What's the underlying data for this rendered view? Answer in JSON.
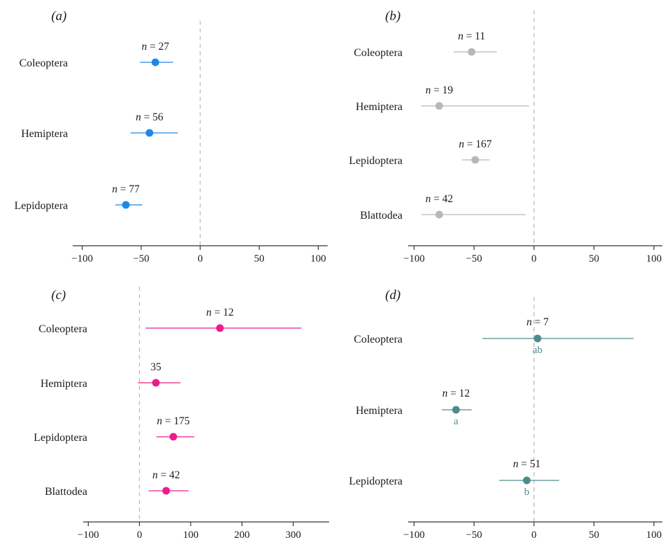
{
  "chart_data": [
    {
      "type": "scatter",
      "panel_label": "(a)",
      "xlim": [
        -108,
        108
      ],
      "xticks": [
        -100,
        -50,
        0,
        50,
        100
      ],
      "tick_labels": [
        "−100",
        "−50",
        "0",
        "50",
        "100"
      ],
      "color": "#1e88e5",
      "reference_line_x": 0,
      "categories": [
        "Coleoptera",
        "Hemiptera",
        "Lepidoptera"
      ],
      "means": [
        -38,
        -43,
        -63
      ],
      "ci_low": [
        -51,
        -59,
        -72
      ],
      "ci_high": [
        -23,
        -19,
        -49
      ],
      "n_labels": [
        {
          "var": "n",
          "eq": " = ",
          "num": "27"
        },
        {
          "var": "n",
          "eq": " = ",
          "num": "56"
        },
        {
          "var": "n",
          "eq": " = ",
          "num": "77"
        }
      ],
      "letters": [
        "",
        "",
        ""
      ]
    },
    {
      "type": "scatter",
      "panel_label": "(b)",
      "xlim": [
        -105,
        107
      ],
      "xticks": [
        -100,
        -50,
        0,
        50,
        100
      ],
      "tick_labels": [
        "−100",
        "−50",
        "0",
        "50",
        "100"
      ],
      "color": "#b8b8b8",
      "reference_line_x": 0,
      "categories": [
        "Coleoptera",
        "Hemiptera",
        "Lepidoptera",
        "Blattodea"
      ],
      "means": [
        -52,
        -79,
        -49,
        -79
      ],
      "ci_low": [
        -67,
        -94,
        -60,
        -94
      ],
      "ci_high": [
        -31,
        -4,
        -37,
        -7
      ],
      "n_labels": [
        {
          "var": "n",
          "eq": " = ",
          "num": "11"
        },
        {
          "var": "n",
          "eq": " = ",
          "num": "19"
        },
        {
          "var": "n",
          "eq": " = ",
          "num": "167"
        },
        {
          "var": "n",
          "eq": " = ",
          "num": "42"
        }
      ],
      "letters": [
        "",
        "",
        "",
        ""
      ]
    },
    {
      "type": "scatter",
      "panel_label": "(c)",
      "xlim": [
        -110,
        370
      ],
      "xticks": [
        -100,
        0,
        100,
        200,
        300
      ],
      "tick_labels": [
        "−100",
        "0",
        "100",
        "200",
        "300"
      ],
      "color": "#ec1c8c",
      "reference_line_x": 0,
      "categories": [
        "Coleoptera",
        "Hemiptera",
        "Lepidoptera",
        "Blattodea"
      ],
      "means": [
        157,
        32,
        66,
        52
      ],
      "ci_low": [
        12,
        -3,
        33,
        18
      ],
      "ci_high": [
        316,
        80,
        107,
        96
      ],
      "n_labels": [
        {
          "var": "n",
          "eq": " = ",
          "num": "12"
        },
        {
          "var": "",
          "eq": "",
          "num": "35"
        },
        {
          "var": "n",
          "eq": " = ",
          "num": "175"
        },
        {
          "var": "n",
          "eq": " = ",
          "num": "42"
        }
      ],
      "letters": [
        "",
        "",
        "",
        ""
      ]
    },
    {
      "type": "scatter",
      "panel_label": "(d)",
      "xlim": [
        -105,
        107
      ],
      "xticks": [
        -100,
        -50,
        0,
        50,
        100
      ],
      "tick_labels": [
        "−100",
        "−50",
        "0",
        "50",
        "100"
      ],
      "color": "#4e8c89",
      "reference_line_x": 0,
      "categories": [
        "Coleoptera",
        "Hemiptera",
        "Lepidoptera"
      ],
      "means": [
        3,
        -65,
        -6
      ],
      "ci_low": [
        -43,
        -77,
        -29
      ],
      "ci_high": [
        83,
        -52,
        21
      ],
      "n_labels": [
        {
          "var": "n",
          "eq": " = ",
          "num": "7"
        },
        {
          "var": "n",
          "eq": " = ",
          "num": "12"
        },
        {
          "var": "n",
          "eq": " = ",
          "num": "51"
        }
      ],
      "letters": [
        "ab",
        "a",
        "b"
      ]
    }
  ]
}
